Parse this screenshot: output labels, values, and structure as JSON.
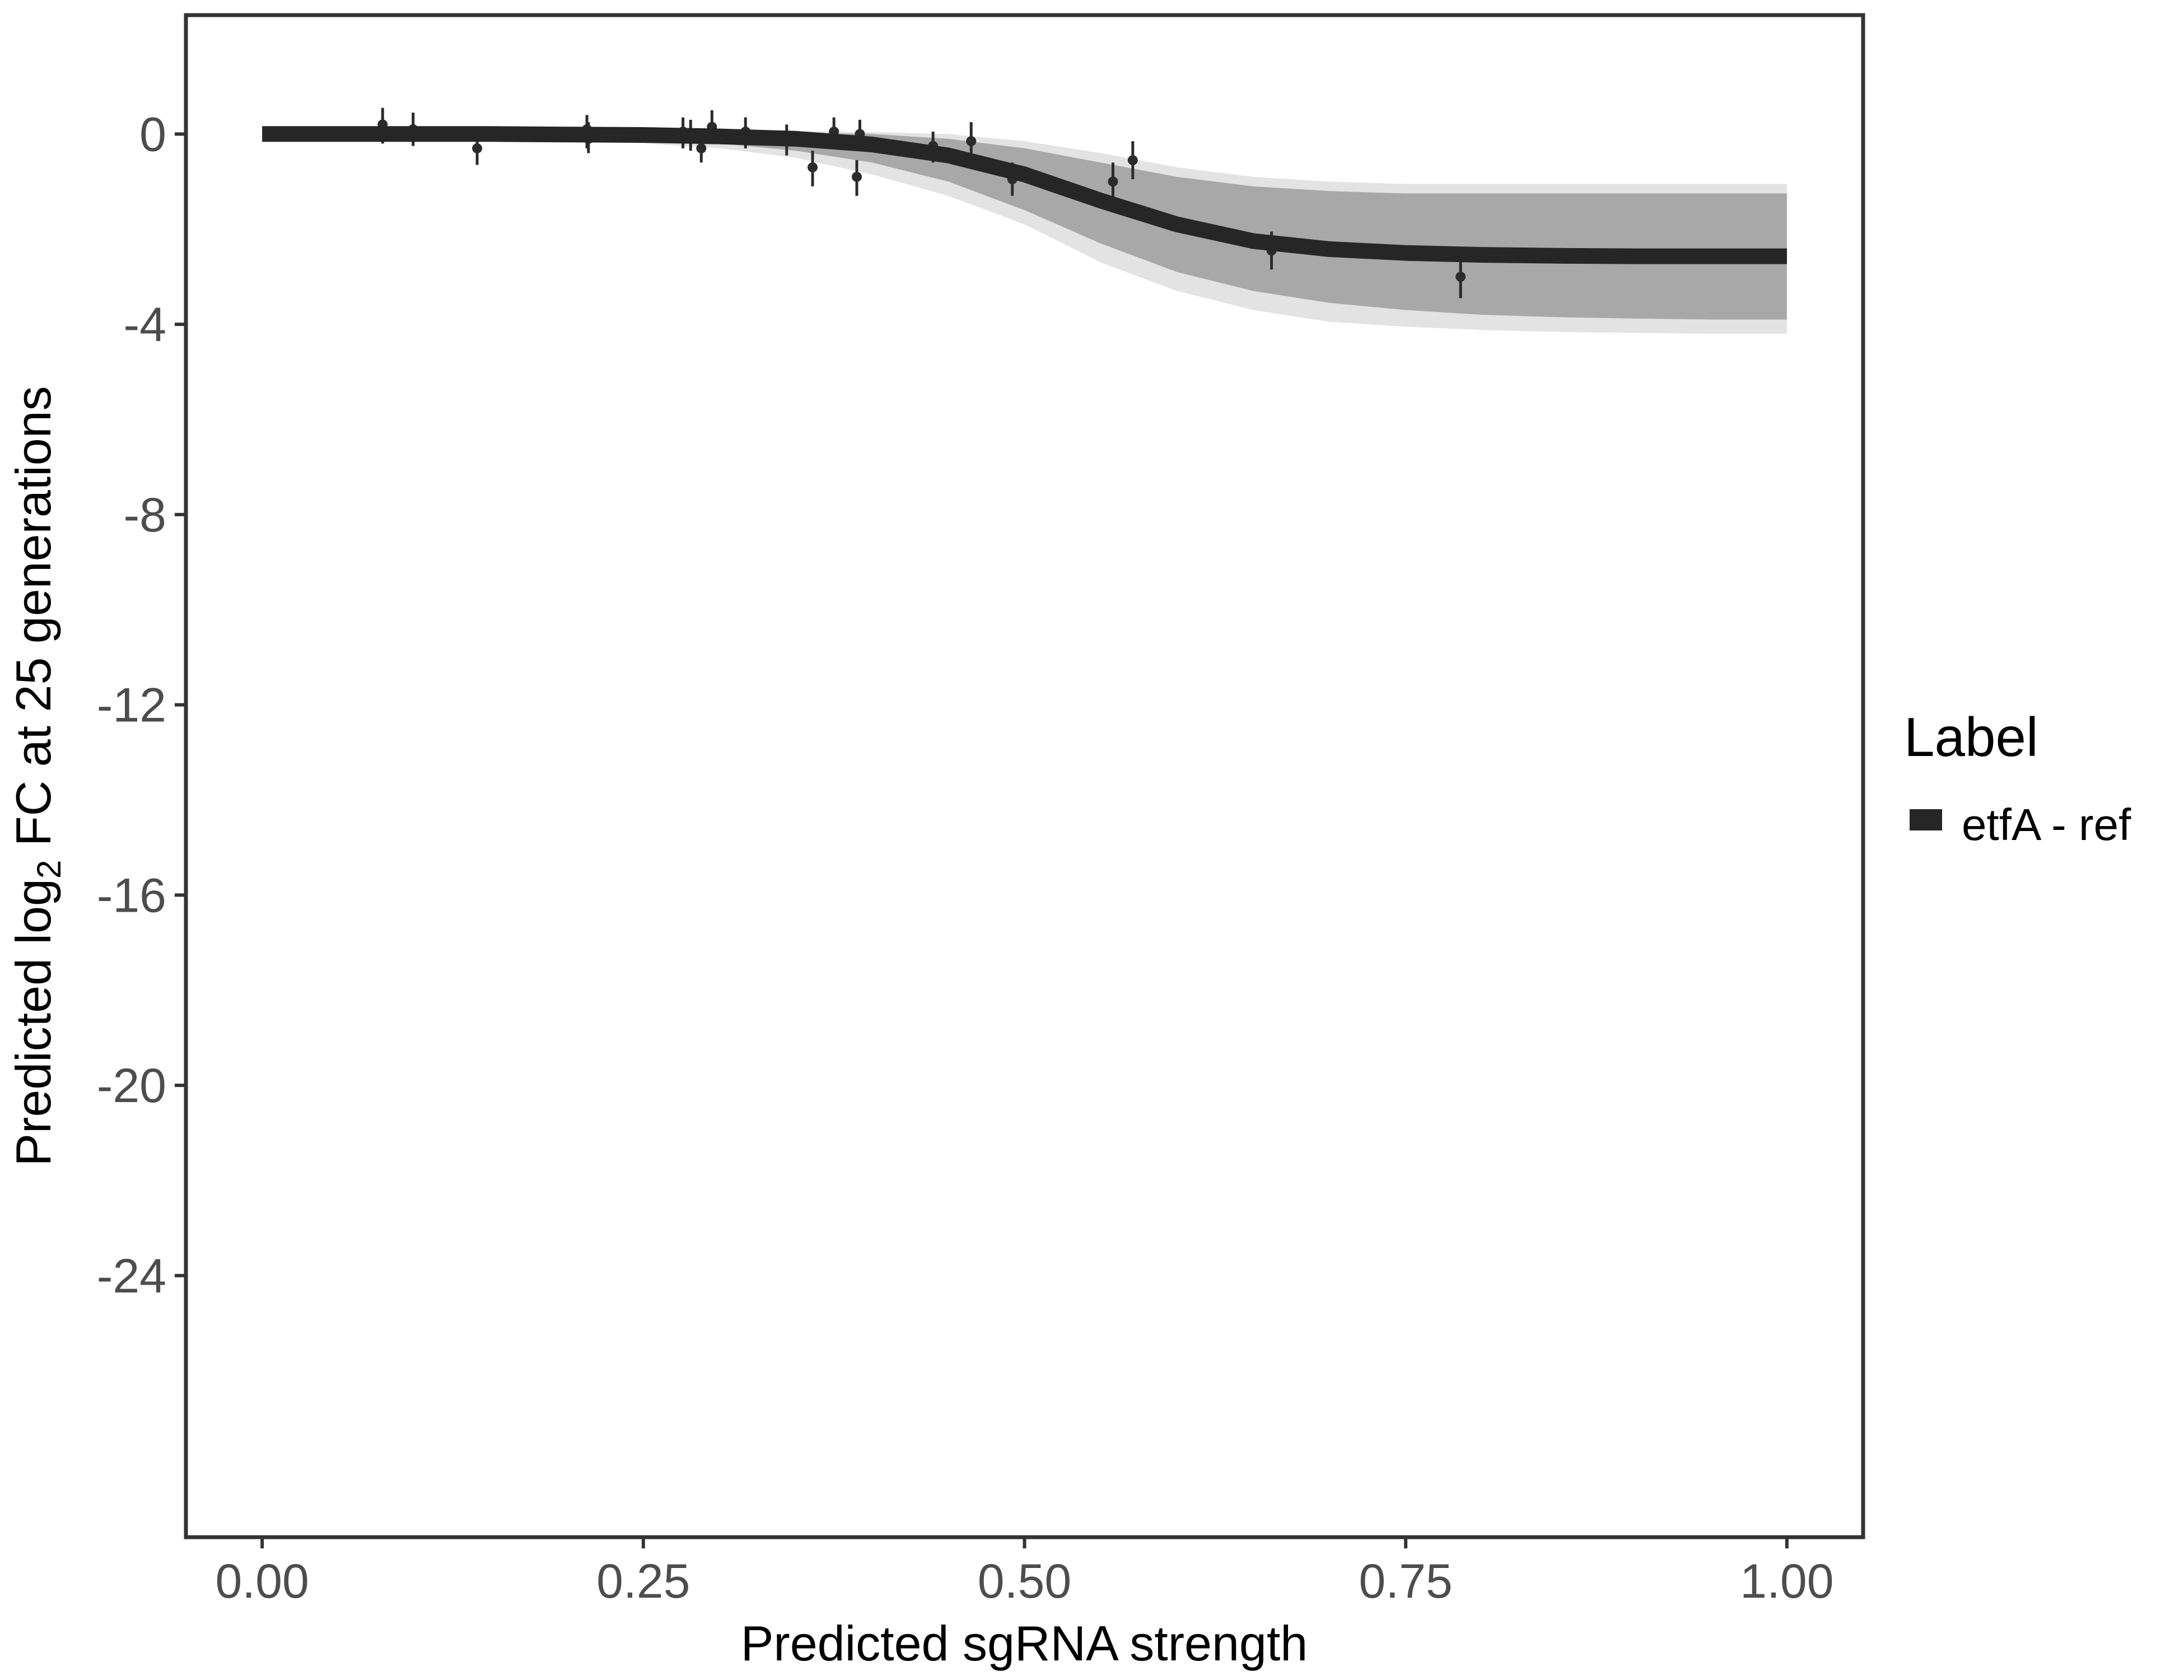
{
  "chart_data": {
    "type": "line",
    "title": "",
    "xlabel": "Predicted sgRNA strength",
    "ylabel": {
      "before": "Predicted  log",
      "subscript": "2",
      "after": " FC at 25 generations"
    },
    "xlim": [
      -0.05,
      1.05
    ],
    "ylim": [
      -29.5,
      2.5
    ],
    "x_ticks": [
      0,
      0.25,
      0.5,
      0.75,
      1
    ],
    "x_tick_labels": [
      "0.00",
      "0.25",
      "0.50",
      "0.75",
      "1.00"
    ],
    "y_ticks": [
      0,
      -4,
      -8,
      -12,
      -16,
      -20,
      -24
    ],
    "y_tick_labels": [
      "0",
      "-4",
      "-8",
      "-12",
      "-16",
      "-20",
      "-24"
    ],
    "grid": false,
    "legend": {
      "title": "Label",
      "placement": "right",
      "entries": [
        {
          "label": "etfA - ref",
          "color": "#262626"
        }
      ]
    },
    "fit_curve": {
      "name": "etfA - ref",
      "color": "#262626",
      "x": [
        0,
        0.05,
        0.1,
        0.15,
        0.2,
        0.25,
        0.3,
        0.35,
        0.4,
        0.45,
        0.5,
        0.55,
        0.6,
        0.65,
        0.7,
        0.75,
        0.8,
        0.85,
        0.9,
        0.95,
        1.0
      ],
      "y": [
        0.0,
        0.0,
        0.0,
        0.0,
        -0.01,
        -0.02,
        -0.05,
        -0.1,
        -0.22,
        -0.45,
        -0.85,
        -1.4,
        -1.9,
        -2.25,
        -2.42,
        -2.5,
        -2.54,
        -2.56,
        -2.57,
        -2.57,
        -2.57
      ]
    },
    "posterior_band": {
      "color": "#a8a8a8",
      "x": [
        0,
        0.05,
        0.1,
        0.15,
        0.2,
        0.25,
        0.3,
        0.35,
        0.4,
        0.45,
        0.5,
        0.55,
        0.6,
        0.65,
        0.7,
        0.75,
        0.8,
        0.85,
        0.9,
        0.95,
        1.0
      ],
      "upper": [
        0.05,
        0.05,
        0.05,
        0.05,
        0.05,
        0.05,
        0.05,
        0.03,
        0.0,
        -0.1,
        -0.3,
        -0.6,
        -0.9,
        -1.1,
        -1.2,
        -1.25,
        -1.25,
        -1.25,
        -1.25,
        -1.25,
        -1.25
      ],
      "lower": [
        -0.05,
        -0.05,
        -0.05,
        -0.06,
        -0.08,
        -0.12,
        -0.2,
        -0.35,
        -0.6,
        -1.0,
        -1.6,
        -2.3,
        -2.9,
        -3.3,
        -3.55,
        -3.7,
        -3.8,
        -3.85,
        -3.88,
        -3.9,
        -3.9
      ],
      "outer_upper": [
        0.08,
        0.08,
        0.08,
        0.08,
        0.08,
        0.08,
        0.08,
        0.06,
        0.04,
        0.0,
        -0.15,
        -0.4,
        -0.7,
        -0.9,
        -1.0,
        -1.05,
        -1.05,
        -1.05,
        -1.05,
        -1.05,
        -1.05
      ],
      "outer_lower": [
        -0.08,
        -0.08,
        -0.1,
        -0.12,
        -0.15,
        -0.2,
        -0.3,
        -0.5,
        -0.85,
        -1.3,
        -1.9,
        -2.7,
        -3.3,
        -3.7,
        -3.95,
        -4.05,
        -4.12,
        -4.16,
        -4.18,
        -4.2,
        -4.2
      ]
    },
    "points": [
      {
        "x": 0.079,
        "y": 0.2,
        "lo": -0.2,
        "hi": 0.55
      },
      {
        "x": 0.099,
        "y": 0.1,
        "lo": -0.25,
        "hi": 0.45
      },
      {
        "x": 0.141,
        "y": -0.3,
        "lo": -0.65,
        "hi": 0.05
      },
      {
        "x": 0.213,
        "y": 0.1,
        "lo": -0.3,
        "hi": 0.4
      },
      {
        "x": 0.214,
        "y": -0.1,
        "lo": -0.4,
        "hi": 0.25
      },
      {
        "x": 0.276,
        "y": 0.05,
        "lo": -0.3,
        "hi": 0.35
      },
      {
        "x": 0.281,
        "y": 0.0,
        "lo": -0.35,
        "hi": 0.3
      },
      {
        "x": 0.288,
        "y": -0.3,
        "lo": -0.6,
        "hi": 0.05
      },
      {
        "x": 0.295,
        "y": 0.15,
        "lo": -0.2,
        "hi": 0.5
      },
      {
        "x": 0.317,
        "y": 0.05,
        "lo": -0.3,
        "hi": 0.35
      },
      {
        "x": 0.344,
        "y": -0.15,
        "lo": -0.45,
        "hi": 0.2
      },
      {
        "x": 0.361,
        "y": -0.7,
        "lo": -1.1,
        "hi": -0.35
      },
      {
        "x": 0.375,
        "y": 0.05,
        "lo": -0.3,
        "hi": 0.35
      },
      {
        "x": 0.39,
        "y": -0.9,
        "lo": -1.3,
        "hi": -0.55
      },
      {
        "x": 0.392,
        "y": 0.0,
        "lo": -0.35,
        "hi": 0.3
      },
      {
        "x": 0.44,
        "y": -0.25,
        "lo": -0.6,
        "hi": 0.05
      },
      {
        "x": 0.465,
        "y": -0.15,
        "lo": -0.5,
        "hi": 0.25
      },
      {
        "x": 0.492,
        "y": -0.95,
        "lo": -1.3,
        "hi": -0.6
      },
      {
        "x": 0.558,
        "y": -1.0,
        "lo": -1.35,
        "hi": -0.6
      },
      {
        "x": 0.571,
        "y": -0.55,
        "lo": -0.95,
        "hi": -0.15
      },
      {
        "x": 0.662,
        "y": -2.45,
        "lo": -2.85,
        "hi": -2.05
      },
      {
        "x": 0.786,
        "y": -3.0,
        "lo": -3.45,
        "hi": -2.6
      }
    ]
  }
}
